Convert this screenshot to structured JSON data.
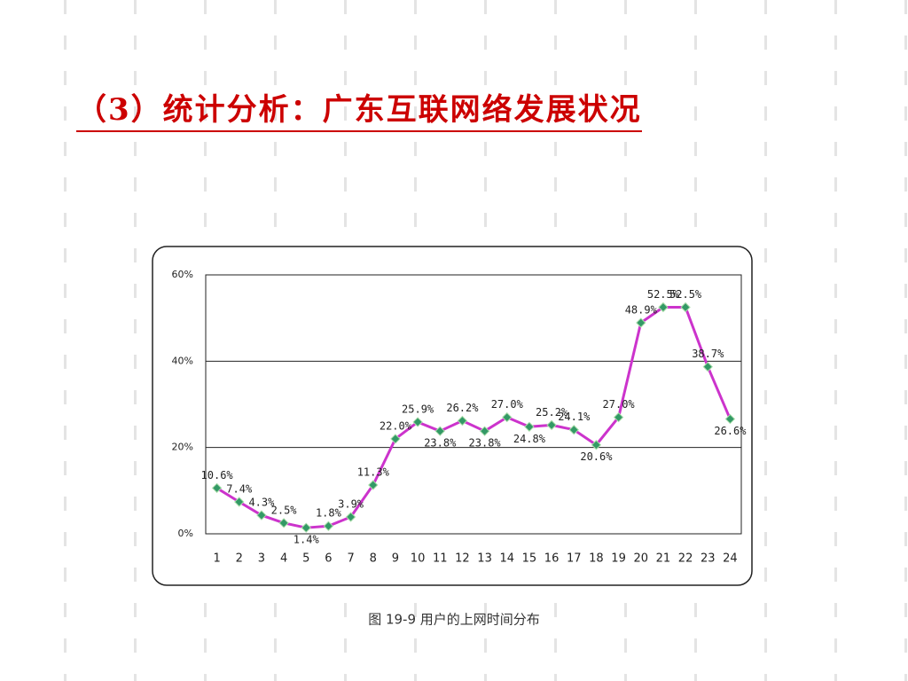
{
  "title": "（3）统计分析：广东互联网络发展状况",
  "chart_data": {
    "type": "line",
    "caption": "图 19-9 用户的上网时间分布",
    "categories": [
      "1",
      "2",
      "3",
      "4",
      "5",
      "6",
      "7",
      "8",
      "9",
      "10",
      "11",
      "12",
      "13",
      "14",
      "15",
      "16",
      "17",
      "18",
      "19",
      "20",
      "21",
      "22",
      "23",
      "24"
    ],
    "values": [
      10.6,
      7.4,
      4.3,
      2.5,
      1.4,
      1.8,
      3.9,
      11.3,
      22.0,
      25.9,
      23.8,
      26.2,
      23.8,
      27.0,
      24.8,
      25.2,
      24.1,
      20.6,
      27.0,
      48.9,
      52.5,
      52.5,
      38.7,
      26.6
    ],
    "value_labels": [
      "10.6%",
      "7.4%",
      "4.3%",
      "2.5%",
      "1.4%",
      "1.8%",
      "3.9%",
      "11.3%",
      "22.0%",
      "25.9%",
      "23.8%",
      "26.2%",
      "23.8%",
      "27.0%",
      "24.8%",
      "25.2%",
      "24.1%",
      "20.6%",
      "27.0%",
      "48.9%",
      "52.5%",
      "52.5%",
      "38.7%",
      "26.6%"
    ],
    "color": "#cc33cc",
    "marker_color": "#339966",
    "ylim": [
      0,
      60
    ],
    "yticks": [
      {
        "value": 0,
        "label": "0%"
      },
      {
        "value": 20,
        "label": "20%"
      },
      {
        "value": 40,
        "label": "40%"
      },
      {
        "value": 60,
        "label": "60%"
      }
    ],
    "grid": true
  }
}
